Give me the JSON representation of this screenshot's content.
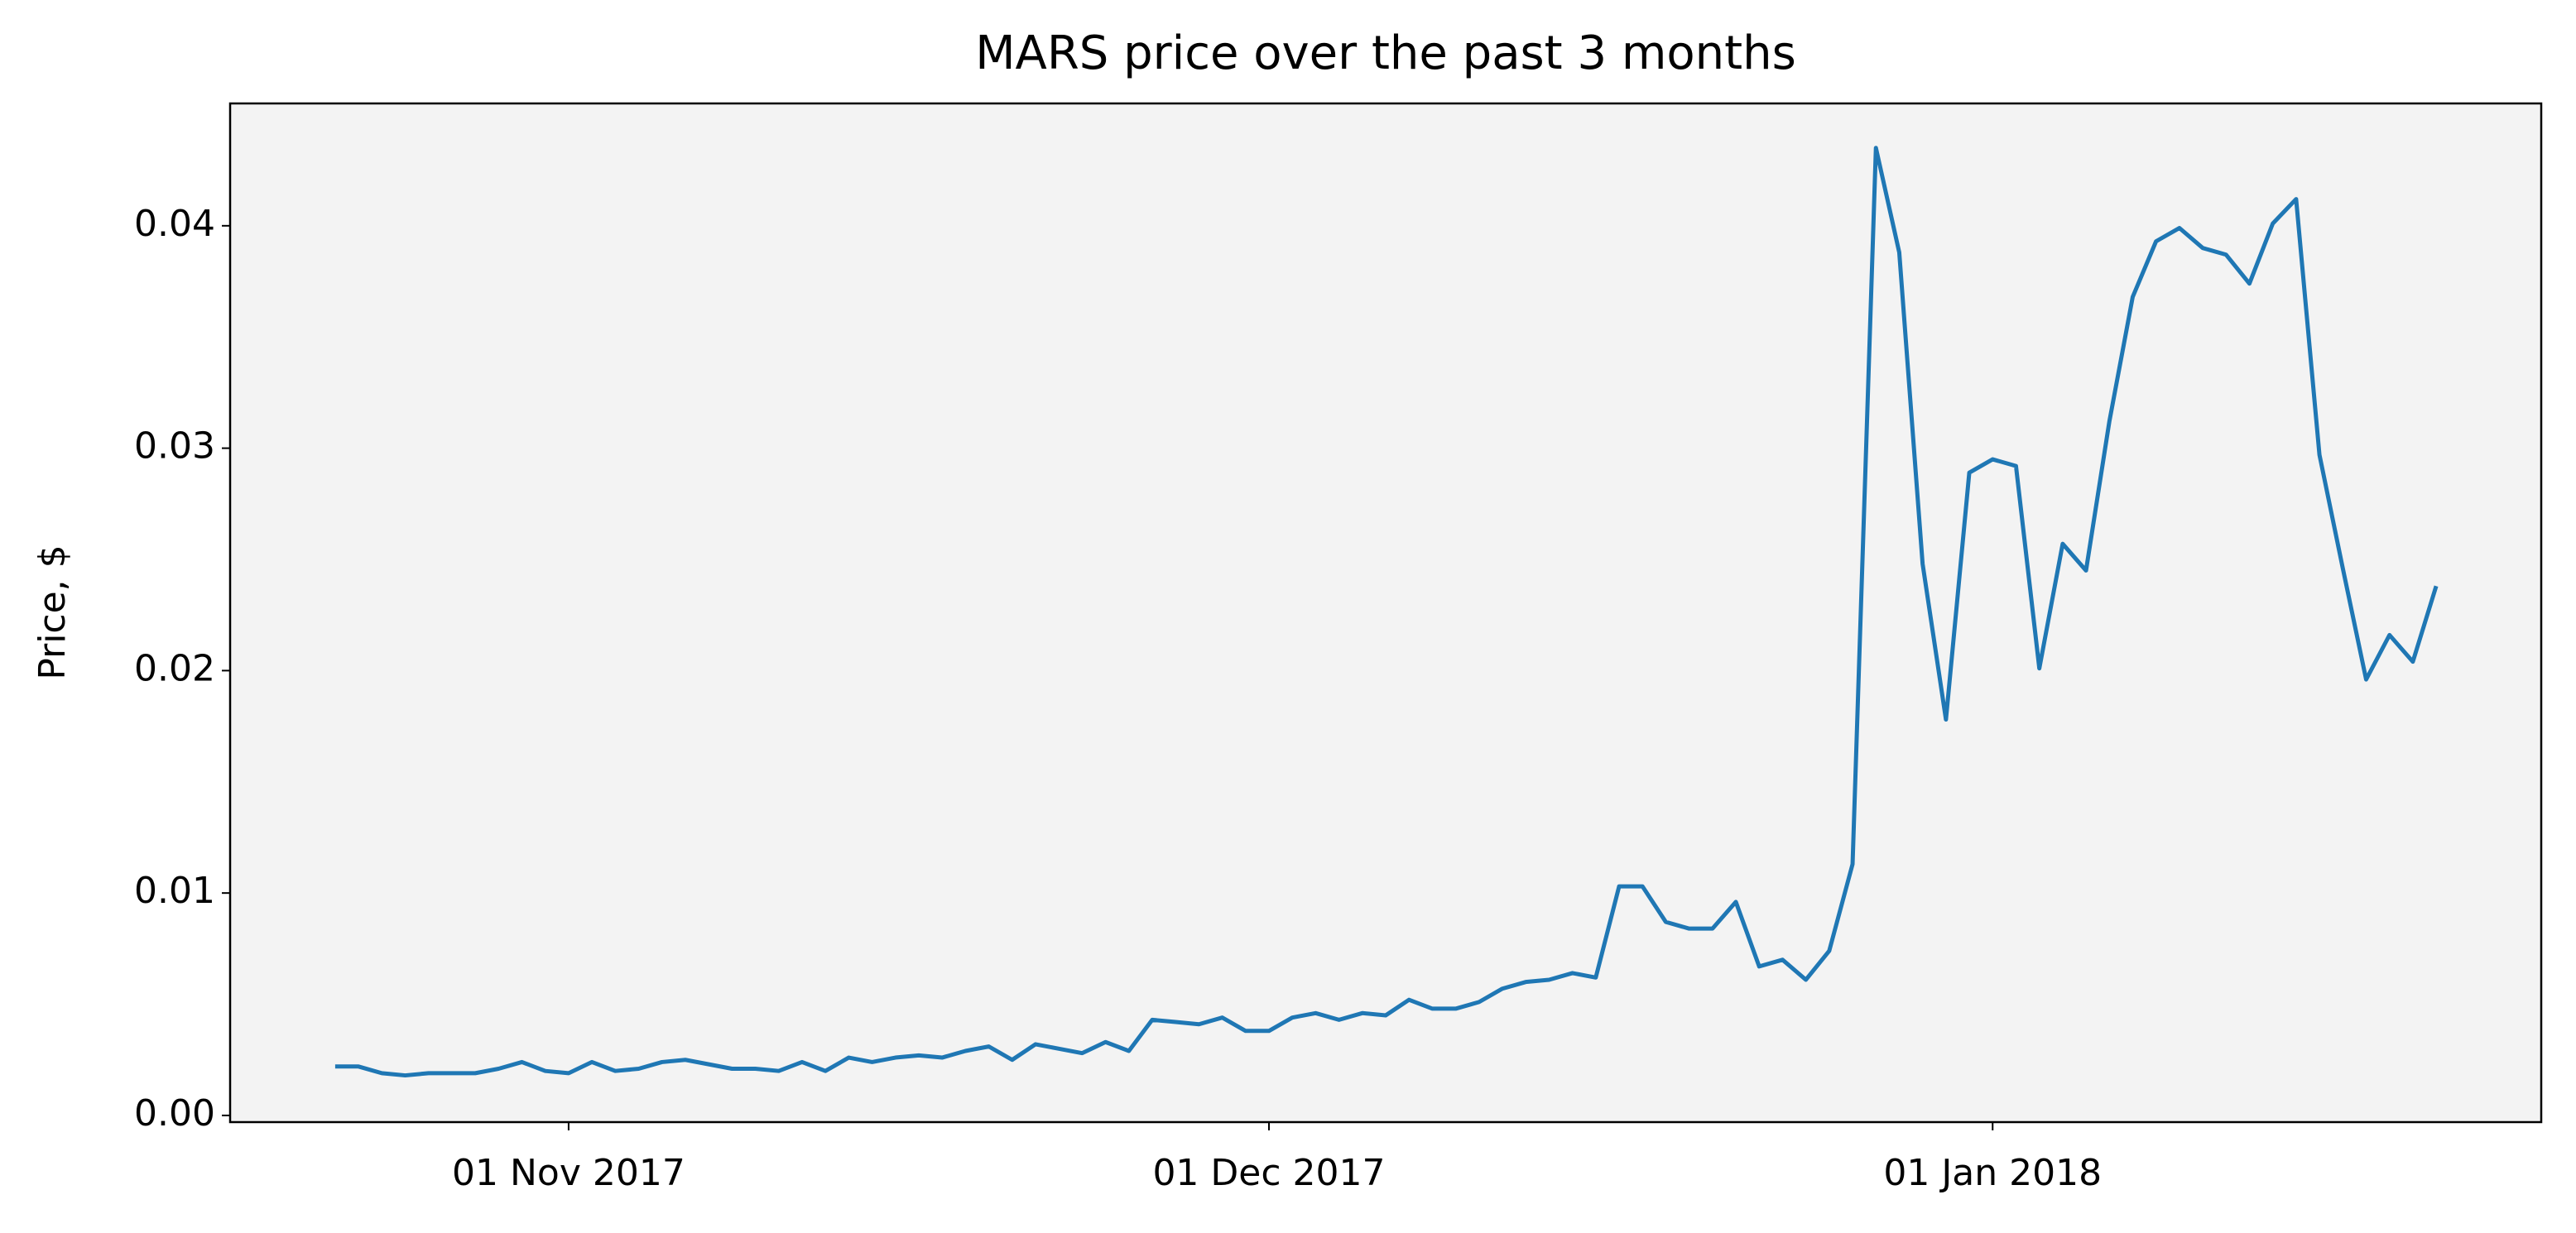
{
  "chart_data": {
    "type": "line",
    "title": "MARS price over the past 3 months",
    "y_label": "Price, $",
    "x": [
      "2017-10-22",
      "2017-10-23",
      "2017-10-24",
      "2017-10-25",
      "2017-10-26",
      "2017-10-27",
      "2017-10-28",
      "2017-10-29",
      "2017-10-30",
      "2017-10-31",
      "2017-11-01",
      "2017-11-02",
      "2017-11-03",
      "2017-11-04",
      "2017-11-05",
      "2017-11-06",
      "2017-11-07",
      "2017-11-08",
      "2017-11-09",
      "2017-11-10",
      "2017-11-11",
      "2017-11-12",
      "2017-11-13",
      "2017-11-14",
      "2017-11-15",
      "2017-11-16",
      "2017-11-17",
      "2017-11-18",
      "2017-11-19",
      "2017-11-20",
      "2017-11-21",
      "2017-11-22",
      "2017-11-23",
      "2017-11-24",
      "2017-11-25",
      "2017-11-26",
      "2017-11-27",
      "2017-11-28",
      "2017-11-29",
      "2017-11-30",
      "2017-12-01",
      "2017-12-02",
      "2017-12-03",
      "2017-12-04",
      "2017-12-05",
      "2017-12-06",
      "2017-12-07",
      "2017-12-08",
      "2017-12-09",
      "2017-12-10",
      "2017-12-11",
      "2017-12-12",
      "2017-12-13",
      "2017-12-14",
      "2017-12-15",
      "2017-12-16",
      "2017-12-17",
      "2017-12-18",
      "2017-12-19",
      "2017-12-20",
      "2017-12-21",
      "2017-12-22",
      "2017-12-23",
      "2017-12-24",
      "2017-12-25",
      "2017-12-26",
      "2017-12-27",
      "2017-12-28",
      "2017-12-29",
      "2017-12-30",
      "2017-12-31",
      "2018-01-01",
      "2018-01-02",
      "2018-01-03",
      "2018-01-04",
      "2018-01-05",
      "2018-01-06",
      "2018-01-07",
      "2018-01-08",
      "2018-01-09",
      "2018-01-10",
      "2018-01-11",
      "2018-01-12",
      "2018-01-13",
      "2018-01-14",
      "2018-01-15",
      "2018-01-16",
      "2018-01-17",
      "2018-01-18",
      "2018-01-19",
      "2018-01-20"
    ],
    "values": [
      0.0022,
      0.0022,
      0.0019,
      0.0018,
      0.0019,
      0.0019,
      0.0019,
      0.0021,
      0.0024,
      0.002,
      0.0019,
      0.0024,
      0.002,
      0.0021,
      0.0024,
      0.0025,
      0.0023,
      0.0021,
      0.0021,
      0.002,
      0.0024,
      0.002,
      0.0026,
      0.0024,
      0.0026,
      0.0027,
      0.0026,
      0.0029,
      0.0031,
      0.0025,
      0.0032,
      0.003,
      0.0028,
      0.0033,
      0.0029,
      0.0043,
      0.0042,
      0.0041,
      0.0044,
      0.0038,
      0.0038,
      0.0044,
      0.0046,
      0.0043,
      0.0046,
      0.0045,
      0.0052,
      0.0048,
      0.0048,
      0.0051,
      0.0057,
      0.006,
      0.0061,
      0.0064,
      0.0062,
      0.0103,
      0.0103,
      0.0087,
      0.0084,
      0.0084,
      0.0096,
      0.0067,
      0.007,
      0.0061,
      0.0074,
      0.0113,
      0.0435,
      0.0388,
      0.0248,
      0.0178,
      0.0289,
      0.0295,
      0.0292,
      0.0201,
      0.0257,
      0.0245,
      0.0312,
      0.0368,
      0.0393,
      0.0399,
      0.039,
      0.0387,
      0.0374,
      0.0401,
      0.0412,
      0.0297,
      0.0246,
      0.0196,
      0.0216,
      0.0204,
      0.0238
    ],
    "color": "#1f77b4",
    "xlim": [
      "2017-10-17T12:00:00Z",
      "2018-01-24T12:00:00Z"
    ],
    "xticks": [
      {
        "value": "2017-11-01",
        "label": "01 Nov 2017"
      },
      {
        "value": "2017-12-01",
        "label": "01 Dec 2017"
      },
      {
        "value": "2018-01-01",
        "label": "01 Jan 2018"
      }
    ],
    "ylim": [
      -0.0003,
      0.0455
    ],
    "yticks": [
      {
        "value": 0,
        "label": "0.00"
      },
      0.01,
      0.02,
      0.03,
      0.04
    ],
    "grid": false
  }
}
